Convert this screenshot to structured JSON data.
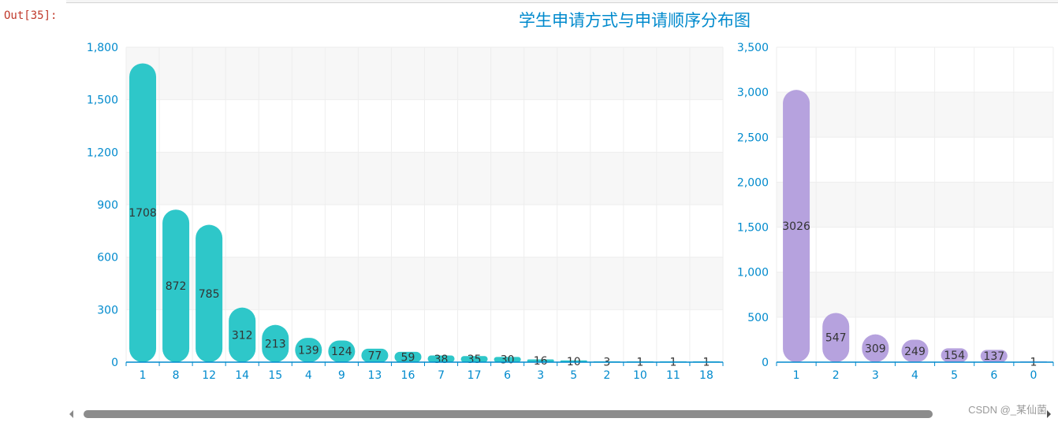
{
  "cell": {
    "out_prompt": "Out[35]:",
    "watermark": "CSDN @_某仙菌"
  },
  "chart_data": [
    {
      "type": "bar",
      "title": "学生申请方式与申请顺序分布图",
      "categories": [
        "1",
        "8",
        "12",
        "14",
        "15",
        "4",
        "9",
        "13",
        "16",
        "7",
        "17",
        "6",
        "3",
        "5",
        "2",
        "10",
        "11",
        "18"
      ],
      "values": [
        1708,
        872,
        785,
        312,
        213,
        139,
        124,
        77,
        59,
        38,
        35,
        30,
        16,
        10,
        3,
        1,
        1,
        1
      ],
      "ylim": [
        0,
        1800
      ],
      "yticks": [
        0,
        300,
        600,
        900,
        1200,
        1500,
        1800
      ],
      "color": "#2ec7c9",
      "data_labels": true,
      "grid": true
    },
    {
      "type": "bar",
      "categories": [
        "1",
        "2",
        "3",
        "4",
        "5",
        "6",
        "0"
      ],
      "values": [
        3026,
        547,
        309,
        249,
        154,
        137,
        1
      ],
      "ylim": [
        0,
        3500
      ],
      "yticks": [
        0,
        500,
        1000,
        1500,
        2000,
        2500,
        3000,
        3500
      ],
      "color": "#b6a2de",
      "data_labels": true,
      "grid": true
    }
  ],
  "colors": {
    "axis": "#008acd",
    "title": "#008acd",
    "label": "#333333"
  }
}
